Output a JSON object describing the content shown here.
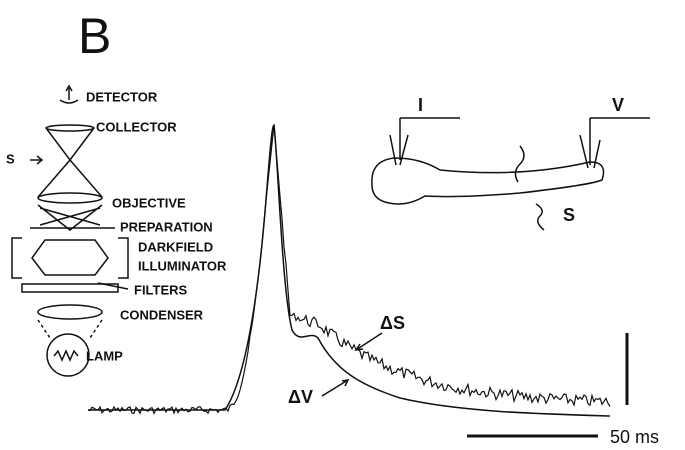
{
  "panel": "B",
  "apparatus": {
    "labels": [
      "DETECTOR",
      "COLLECTOR",
      "S",
      "OBJECTIVE",
      "PREPARATION",
      "DARKFIELD",
      "ILLUMINATOR",
      "FILTERS",
      "CONDENSER",
      "LAMP"
    ]
  },
  "neuron": {
    "current": "I",
    "voltage": "V",
    "scatter": "S"
  },
  "traces": {
    "light": "ΔS",
    "voltage": "ΔV"
  },
  "scale_bar": "50 ms"
}
